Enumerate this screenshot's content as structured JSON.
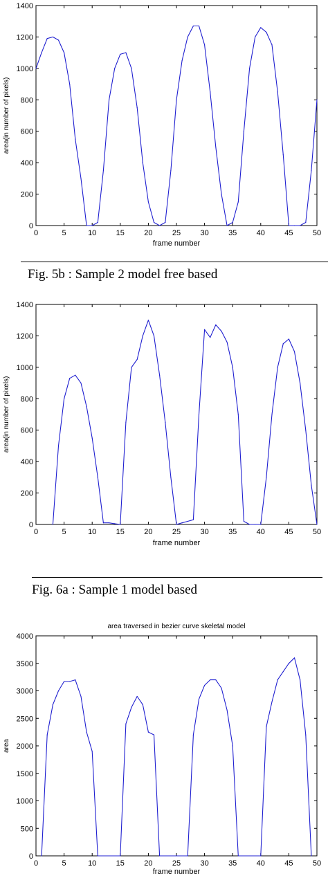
{
  "captions": {
    "fig5b": "Fig. 5b : Sample 2 model free based",
    "fig6a": "Fig. 6a : Sample 1 model based"
  },
  "chart_data": [
    {
      "type": "line",
      "title": "",
      "xlabel": "frame number",
      "ylabel": "area(in number of pixels)",
      "xlim": [
        0,
        50
      ],
      "ylim": [
        0,
        1400
      ],
      "xticks": [
        0,
        5,
        10,
        15,
        20,
        25,
        30,
        35,
        40,
        45,
        50
      ],
      "yticks": [
        0,
        200,
        400,
        600,
        800,
        1000,
        1200,
        1400
      ],
      "grid": false,
      "color": "#1f1fd0",
      "series": [
        {
          "x": [
            0,
            1,
            2,
            3,
            4,
            5,
            6,
            7,
            8,
            9,
            10,
            11,
            12,
            13,
            14,
            15,
            16,
            17,
            18,
            19,
            20,
            21,
            22,
            23,
            24,
            25,
            26,
            27,
            28,
            29,
            30,
            31,
            32,
            33,
            34,
            35,
            36,
            37,
            38,
            39,
            40,
            41,
            42,
            43,
            44,
            45,
            46,
            47,
            48,
            49,
            50
          ],
          "y": [
            1000,
            1100,
            1190,
            1200,
            1180,
            1100,
            900,
            550,
            300,
            0,
            0,
            20,
            350,
            800,
            1000,
            1090,
            1100,
            1000,
            750,
            400,
            150,
            20,
            0,
            20,
            350,
            800,
            1050,
            1200,
            1270,
            1270,
            1150,
            850,
            500,
            200,
            0,
            20,
            150,
            600,
            1000,
            1200,
            1260,
            1230,
            1150,
            850,
            450,
            0,
            0,
            0,
            20,
            350,
            800
          ]
        }
      ]
    },
    {
      "type": "line",
      "title": "",
      "xlabel": "frame number",
      "ylabel": "area(in number of pixels)",
      "xlim": [
        0,
        50
      ],
      "ylim": [
        0,
        1400
      ],
      "xticks": [
        0,
        5,
        10,
        15,
        20,
        25,
        30,
        35,
        40,
        45,
        50
      ],
      "yticks": [
        0,
        200,
        400,
        600,
        800,
        1000,
        1200,
        1400
      ],
      "grid": false,
      "color": "#1f1fd0",
      "series": [
        {
          "x": [
            3,
            4,
            5,
            6,
            7,
            8,
            9,
            10,
            11,
            12,
            13,
            14,
            15,
            16,
            17,
            18,
            19,
            20,
            21,
            22,
            23,
            24,
            25,
            26,
            27,
            28,
            29,
            30,
            31,
            32,
            33,
            34,
            35,
            36,
            37,
            38,
            39,
            40,
            41,
            42,
            43,
            44,
            45,
            46,
            47,
            48,
            49,
            50
          ],
          "y": [
            0,
            500,
            800,
            930,
            950,
            900,
            750,
            550,
            300,
            10,
            10,
            5,
            0,
            650,
            1000,
            1050,
            1200,
            1300,
            1200,
            950,
            650,
            300,
            0,
            10,
            20,
            30,
            700,
            1240,
            1190,
            1270,
            1230,
            1160,
            1000,
            700,
            20,
            0,
            0,
            0,
            300,
            700,
            1000,
            1150,
            1180,
            1100,
            900,
            600,
            250,
            0
          ]
        }
      ]
    },
    {
      "type": "line",
      "title": "area traversed in bezier curve skeletal model",
      "xlabel": "frame number",
      "ylabel": "area",
      "xlim": [
        0,
        50
      ],
      "ylim": [
        0,
        4000
      ],
      "xticks": [
        0,
        5,
        10,
        15,
        20,
        25,
        30,
        35,
        40,
        45,
        50
      ],
      "yticks": [
        0,
        500,
        1000,
        1500,
        2000,
        2500,
        3000,
        3500,
        4000
      ],
      "grid": false,
      "color": "#1f1fd0",
      "series": [
        {
          "x": [
            1,
            2,
            3,
            4,
            5,
            6,
            7,
            8,
            9,
            10,
            11,
            15,
            16,
            17,
            18,
            19,
            20,
            21,
            22,
            27,
            28,
            29,
            30,
            31,
            32,
            33,
            34,
            35,
            36,
            40,
            41,
            42,
            43,
            44,
            45,
            46,
            47,
            48,
            49
          ],
          "y": [
            0,
            2200,
            2750,
            3000,
            3170,
            3170,
            3200,
            2900,
            2250,
            1900,
            0,
            0,
            2400,
            2700,
            2900,
            2750,
            2250,
            2200,
            0,
            0,
            2200,
            2850,
            3100,
            3200,
            3200,
            3050,
            2650,
            2000,
            0,
            0,
            2350,
            2800,
            3200,
            3350,
            3500,
            3600,
            3200,
            2200,
            0
          ]
        }
      ]
    }
  ]
}
